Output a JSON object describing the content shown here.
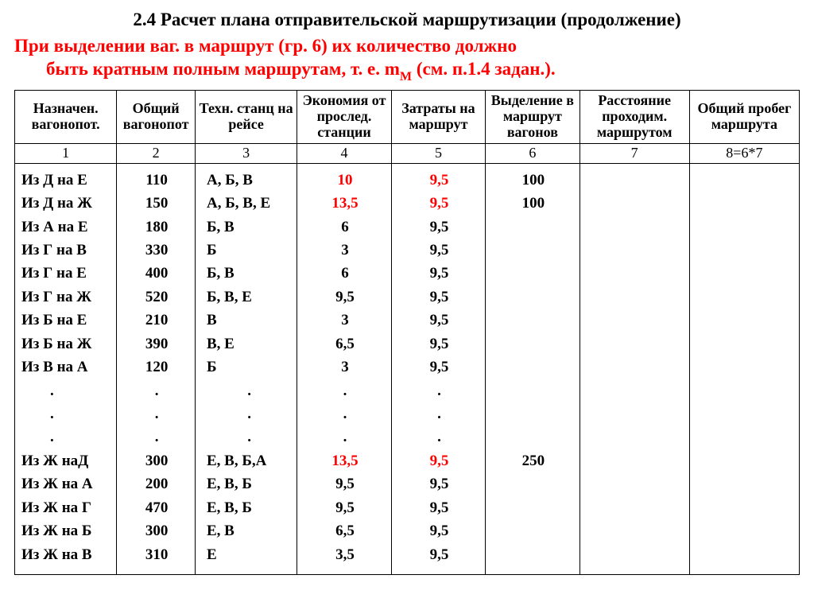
{
  "title": "2.4 Расчет плана отправительской маршрутизации (продолжение)",
  "subtitle_line1": "При выделении ваг. в маршрут (гр. 6) их количество должно",
  "subtitle_line2_a": "быть кратным полным маршрутам, т. е. m",
  "subtitle_line2_sub": "М",
  "subtitle_line2_b": " (см. п.1.4 задан.).",
  "headers": {
    "h1": "Назначен. вагонопот.",
    "h2": "Общий вагонопот",
    "h3": "Техн. станц на рейсе",
    "h4": "Экономия от прослед. станции",
    "h5": "Затраты на маршрут",
    "h6": "Выделение в маршрут вагонов",
    "h7": "Расстояние проходим. маршрутом",
    "h8": "Общий пробег маршрута"
  },
  "numrow": {
    "n1": "1",
    "n2": "2",
    "n3": "3",
    "n4": "4",
    "n5": "5",
    "n6": "6",
    "n7": "7",
    "n8": "8=6*7"
  },
  "col_widths": [
    "13%",
    "10%",
    "13%",
    "12%",
    "12%",
    "12%",
    "14%",
    "14%"
  ],
  "highlight_color": "#ff0000",
  "rows": [
    {
      "c1": "Из Д на Е",
      "c2": "110",
      "c3": "А, Б, В",
      "c4": "10",
      "c4red": true,
      "c5": "9,5",
      "c5red": true,
      "c6": "100"
    },
    {
      "c1": "Из Д на Ж",
      "c2": "150",
      "c3": "А, Б, В, Е",
      "c4": "13,5",
      "c4red": true,
      "c5": "9,5",
      "c5red": true,
      "c6": "100"
    },
    {
      "c1": "Из А на Е",
      "c2": "180",
      "c3": "Б, В",
      "c4": "6",
      "c5": "9,5",
      "c6": ""
    },
    {
      "c1": "Из Г на В",
      "c2": "330",
      "c3": "Б",
      "c4": "3",
      "c5": "9,5",
      "c6": ""
    },
    {
      "c1": "Из Г на Е",
      "c2": "400",
      "c3": "Б, В",
      "c4": "6",
      "c5": "9,5",
      "c6": ""
    },
    {
      "c1": "Из Г на Ж",
      "c2": "520",
      "c3": "Б, В, Е",
      "c4": "9,5",
      "c5": "9,5",
      "c6": ""
    },
    {
      "c1": "Из Б на Е",
      "c2": "210",
      "c3": "В",
      "c4": "3",
      "c5": "9,5",
      "c6": ""
    },
    {
      "c1": "Из Б на Ж",
      "c2": "390",
      "c3": " В, Е",
      "c4": "6,5",
      "c5": "9,5",
      "c6": ""
    },
    {
      "c1": "Из В на А",
      "c2": "120",
      "c3": "Б",
      "c4": "3",
      "c5": "9,5",
      "c6": ""
    },
    {
      "dots": true
    },
    {
      "dots": true
    },
    {
      "dots": true
    },
    {
      "c1": "Из Ж наД",
      "c2": "300",
      "c3": "Е, В, Б,А",
      "c4": "13,5",
      "c4red": true,
      "c5": "9,5",
      "c5red": true,
      "c6": "250"
    },
    {
      "c1": "Из Ж на А",
      "c2": "200",
      "c3": "Е, В, Б",
      "c4": "9,5",
      "c5": "9,5",
      "c6": ""
    },
    {
      "c1": "Из Ж на Г",
      "c2": "470",
      "c3": "Е, В, Б",
      "c4": "9,5",
      "c5": "9,5",
      "c6": ""
    },
    {
      "c1": "Из Ж на Б",
      "c2": "300",
      "c3": "Е, В",
      "c4": "6,5",
      "c5": "9,5",
      "c6": ""
    },
    {
      "c1": "Из Ж на В",
      "c2": "310",
      "c3": "Е",
      "c4": "3,5",
      "c5": "9,5",
      "c6": ""
    }
  ]
}
